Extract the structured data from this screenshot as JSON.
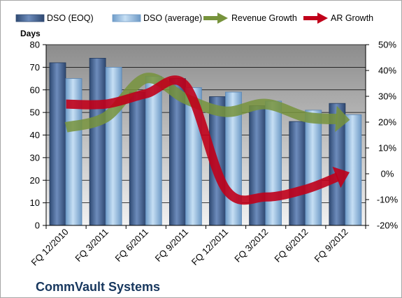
{
  "chart_data": {
    "type": "bar",
    "title": "CommVault Systems",
    "ylabel": "Days",
    "ylim": [
      0,
      80
    ],
    "y2lim": [
      -20,
      50
    ],
    "y_ticks": [
      "0",
      "10",
      "20",
      "30",
      "40",
      "50",
      "60",
      "70",
      "80"
    ],
    "y2_ticks": [
      "-20%",
      "-10%",
      "0%",
      "10%",
      "20%",
      "30%",
      "40%",
      "50%"
    ],
    "categories": [
      "FQ 12/2010",
      "FQ 3/2011",
      "FQ 6/2011",
      "FQ 9/2011",
      "FQ 12/2011",
      "FQ 3/2012",
      "FQ 6/2012",
      "FQ 9/2012"
    ],
    "series": [
      {
        "name": "DSO (EOQ)",
        "type": "bar",
        "axis": "left",
        "color": "#4f6d9c",
        "values": [
          72,
          74,
          59,
          65,
          57,
          53,
          46,
          54
        ]
      },
      {
        "name": "DSO (average)",
        "type": "bar",
        "axis": "left",
        "color": "#9dc3e6",
        "values": [
          65,
          70,
          66,
          61,
          59,
          55,
          51,
          49
        ]
      },
      {
        "name": "Revenue Growth",
        "type": "arrow-line",
        "axis": "right",
        "color": "#77933c",
        "values": [
          18,
          22,
          37,
          29,
          24,
          27,
          22,
          21
        ]
      },
      {
        "name": "AR Growth",
        "type": "arrow-line",
        "axis": "right",
        "color": "#c0001a",
        "values": [
          27,
          27,
          31,
          34,
          -6,
          -9,
          -6,
          0
        ]
      }
    ],
    "grid": true,
    "legend": "top"
  }
}
